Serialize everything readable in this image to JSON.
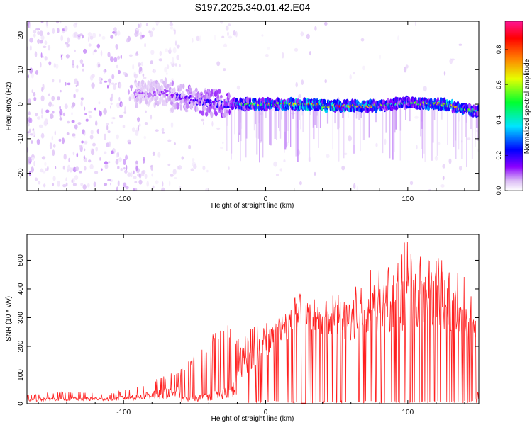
{
  "title": "S197.2025.340.01.42.E04",
  "chart_data": [
    {
      "type": "heatmap",
      "title": "S197.2025.340.01.42.E04",
      "xlabel": "Height of straight line (km)",
      "ylabel": "Frequency (Hz)",
      "xlim": [
        -168,
        150
      ],
      "ylim": [
        -25,
        24
      ],
      "xticks": [
        -100,
        0,
        100
      ],
      "xtick_labels": [
        "-100",
        "0",
        "100"
      ],
      "yticks": [
        -20,
        -10,
        0,
        10,
        20
      ],
      "ytick_labels": [
        "-20",
        "-10",
        "0",
        "10",
        "20"
      ],
      "colorbar": {
        "label": "Normalized spectral amplitude",
        "range": [
          0,
          0.96
        ],
        "ticks": [
          0,
          0.2,
          0.4,
          0.6,
          0.8
        ],
        "tick_labels": [
          "0.0",
          "0.2",
          "0.4",
          "0.6",
          "0.8"
        ],
        "colormap": [
          "#ffffff",
          "#d9b8f5",
          "#8b00ff",
          "#0000ff",
          "#00e5ff",
          "#00ff30",
          "#e6ff00",
          "#ff8000",
          "#ff0000",
          "#ff1493"
        ]
      },
      "features": {
        "noise_region_x": [
          -168,
          -60
        ],
        "dense_band": [
          {
            "x": -85,
            "f": 3.0,
            "amp": 0.18
          },
          {
            "x": -70,
            "f": 3.5,
            "amp": 0.22
          },
          {
            "x": -55,
            "f": 1.5,
            "amp": 0.3
          },
          {
            "x": -40,
            "f": 0.5,
            "amp": 0.32
          },
          {
            "x": -25,
            "f": 0.0,
            "amp": 0.35
          },
          {
            "x": -20,
            "f": 0.0,
            "amp": 0.6
          },
          {
            "x": 0,
            "f": 0.0,
            "amp": 0.7
          },
          {
            "x": 25,
            "f": 0.0,
            "amp": 0.8
          },
          {
            "x": 45,
            "f": -0.5,
            "amp": 0.85
          },
          {
            "x": 80,
            "f": -0.5,
            "amp": 0.7
          },
          {
            "x": 100,
            "f": 0.5,
            "amp": 0.55
          },
          {
            "x": 125,
            "f": 0.0,
            "amp": 0.8
          },
          {
            "x": 148,
            "f": -2.0,
            "amp": 0.6
          }
        ]
      }
    },
    {
      "type": "line",
      "xlabel": "Height of straight line (km)",
      "ylabel": "SNR (10 * v/v)",
      "xlim": [
        -168,
        150
      ],
      "ylim": [
        0,
        590
      ],
      "xticks": [
        -100,
        0,
        100
      ],
      "xtick_labels": [
        "-100",
        "0",
        "100"
      ],
      "yticks": [
        0,
        100,
        200,
        300,
        400,
        500
      ],
      "ytick_labels": [
        "0",
        "100",
        "200",
        "300",
        "400",
        "500"
      ],
      "color": "#ff2020",
      "envelope": {
        "x": [
          -168,
          -150,
          -130,
          -110,
          -90,
          -75,
          -60,
          -45,
          -30,
          -20,
          -10,
          0,
          10,
          20,
          30,
          40,
          50,
          60,
          70,
          80,
          90,
          100,
          110,
          120,
          130,
          140,
          150
        ],
        "peak": [
          30,
          40,
          40,
          35,
          60,
          90,
          120,
          200,
          300,
          240,
          270,
          290,
          340,
          380,
          390,
          340,
          400,
          400,
          470,
          470,
          500,
          590,
          510,
          560,
          480,
          450,
          320
        ],
        "base": [
          8,
          10,
          10,
          10,
          12,
          15,
          20,
          30,
          50,
          80,
          120,
          160,
          200,
          230,
          260,
          240,
          230,
          220,
          230,
          240,
          250,
          220,
          260,
          250,
          240,
          220,
          180
        ]
      }
    }
  ]
}
